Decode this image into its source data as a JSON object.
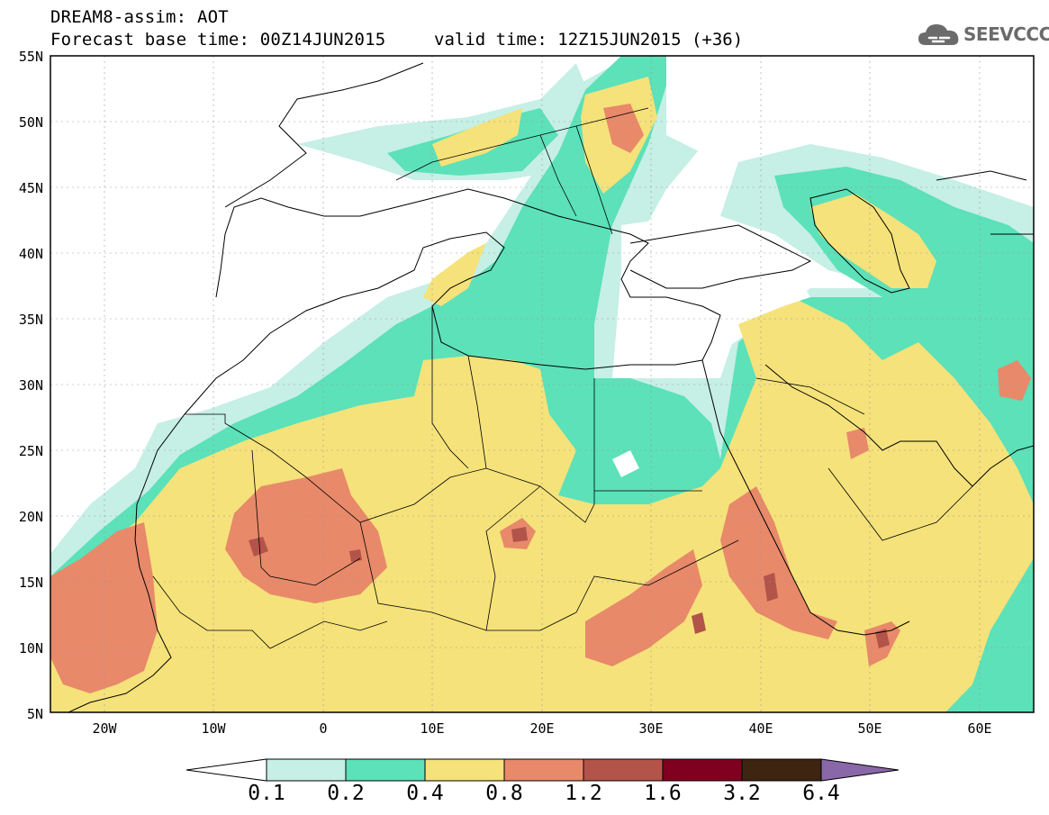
{
  "header": {
    "title": "DREAM8-assim: AOT",
    "subtitle": "Forecast base time: 00Z14JUN2015",
    "valid": "valid time: 12Z15JUN2015 (+36)"
  },
  "logo": {
    "text": "SEEVCCC",
    "icon": "cloud-icon",
    "color": "#6b6b6b"
  },
  "map": {
    "lat_labels": [
      "55N",
      "50N",
      "45N",
      "40N",
      "35N",
      "30N",
      "25N",
      "20N",
      "15N",
      "10N",
      "5N"
    ],
    "lon_labels": [
      "20W",
      "10W",
      "0",
      "10E",
      "20E",
      "30E",
      "40E",
      "50E",
      "60E"
    ],
    "lon_range": [
      -25,
      65
    ],
    "lat_range": [
      5,
      55
    ]
  },
  "colorbar": {
    "labels": [
      "0.1",
      "0.2",
      "0.4",
      "0.8",
      "1.2",
      "1.6",
      "3.2",
      "6.4"
    ],
    "colors": [
      "#ffffff",
      "#c6efe6",
      "#5ce1b9",
      "#f5e27a",
      "#e8896a",
      "#b3544a",
      "#800020",
      "#3d2512",
      "#8a67a8"
    ]
  },
  "levels": {
    "l1": "#c6efe6",
    "l2": "#5ce1b9",
    "l3": "#f5e27a",
    "l4": "#e8896a",
    "l5": "#b3544a"
  }
}
